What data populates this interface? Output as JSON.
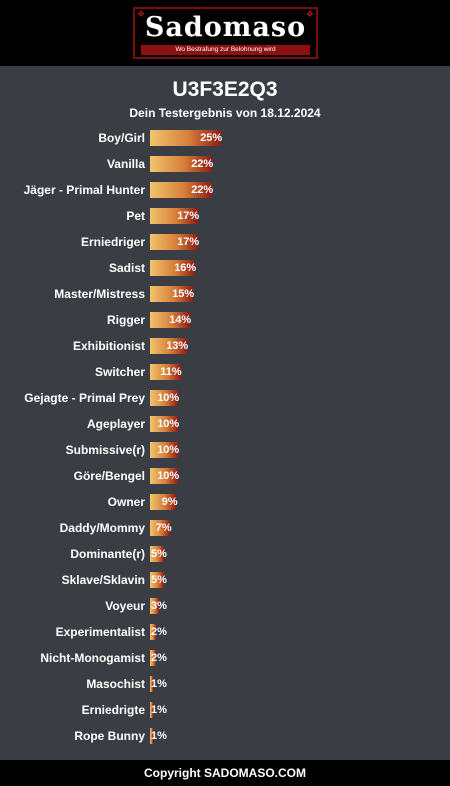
{
  "header": {
    "logo_text": "Sadomaso",
    "logo_tagline": "Wo Bestrafung zur Belohnung wird",
    "logo_corner_left": "❖",
    "logo_corner_right": "❖"
  },
  "result": {
    "code": "U3F3E2Q3",
    "subtitle": "Dein Testergebnis von 18.12.2024"
  },
  "colors": {
    "bar_start": "#f2c46d",
    "bar_end": "#8d1c16",
    "panel": "#3a3d44"
  },
  "chart_data": {
    "type": "bar",
    "orientation": "horizontal",
    "title": "",
    "xlabel": "",
    "ylabel": "",
    "unit": "%",
    "categories": [
      "Boy/Girl",
      "Vanilla",
      "Jäger - Primal Hunter",
      "Pet",
      "Erniedriger",
      "Sadist",
      "Master/Mistress",
      "Rigger",
      "Exhibitionist",
      "Switcher",
      "Gejagte - Primal Prey",
      "Ageplayer",
      "Submissive(r)",
      "Göre/Bengel",
      "Owner",
      "Daddy/Mommy",
      "Dominante(r)",
      "Sklave/Sklavin",
      "Voyeur",
      "Experimentalist",
      "Nicht-Monogamist",
      "Masochist",
      "Erniedrigte",
      "Rope Bunny"
    ],
    "values": [
      25,
      22,
      22,
      17,
      17,
      16,
      15,
      14,
      13,
      11,
      10,
      10,
      10,
      10,
      9,
      7,
      5,
      5,
      3,
      2,
      2,
      1,
      1,
      1
    ],
    "labels": [
      "25%",
      "22%",
      "22%",
      "17%",
      "17%",
      "16%",
      "15%",
      "14%",
      "13%",
      "11%",
      "10%",
      "10%",
      "10%",
      "10%",
      "9%",
      "7%",
      "5%",
      "5%",
      "3%",
      "2%",
      "2%",
      "1%",
      "1%",
      "1%"
    ]
  },
  "footer": {
    "text": "Copyright SADOMASO.COM"
  }
}
